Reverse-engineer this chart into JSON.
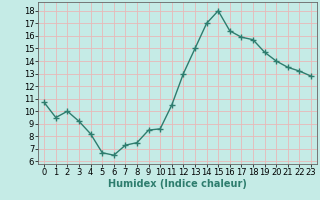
{
  "x": [
    0,
    1,
    2,
    3,
    4,
    5,
    6,
    7,
    8,
    9,
    10,
    11,
    12,
    13,
    14,
    15,
    16,
    17,
    18,
    19,
    20,
    21,
    22,
    23
  ],
  "y": [
    10.7,
    9.5,
    10.0,
    9.2,
    8.2,
    6.7,
    6.5,
    7.3,
    7.5,
    8.5,
    8.6,
    10.5,
    13.0,
    15.0,
    17.0,
    18.0,
    16.4,
    15.9,
    15.7,
    14.7,
    14.0,
    13.5,
    13.2,
    12.8
  ],
  "line_color": "#2e7d6e",
  "bg_color": "#c5ebe6",
  "grid_color": "#e8b8b8",
  "xlabel": "Humidex (Indice chaleur)",
  "xlim": [
    -0.5,
    23.5
  ],
  "ylim": [
    5.8,
    18.7
  ],
  "yticks": [
    6,
    7,
    8,
    9,
    10,
    11,
    12,
    13,
    14,
    15,
    16,
    17,
    18
  ],
  "xticks": [
    0,
    1,
    2,
    3,
    4,
    5,
    6,
    7,
    8,
    9,
    10,
    11,
    12,
    13,
    14,
    15,
    16,
    17,
    18,
    19,
    20,
    21,
    22,
    23
  ],
  "marker": "+",
  "marker_size": 4,
  "line_width": 1.0,
  "xlabel_fontsize": 7,
  "tick_fontsize": 6
}
